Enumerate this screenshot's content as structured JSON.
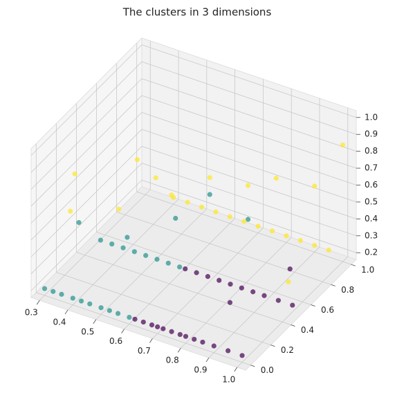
{
  "chart_data": {
    "type": "scatter3d",
    "title": "The clusters in 3 dimensions",
    "xlim": [
      0.27,
      1.03
    ],
    "ylim": [
      -0.05,
      1.05
    ],
    "zlim": [
      0.16,
      1.04
    ],
    "xticks": [
      0.3,
      0.4,
      0.5,
      0.6,
      0.7,
      0.8,
      0.9,
      {
        "value": 1,
        "label": "1.0"
      }
    ],
    "yticks": [
      {
        "value": 0,
        "label": "0.0"
      },
      0.2,
      0.4,
      0.6,
      0.8,
      {
        "value": 1,
        "label": "1.0"
      }
    ],
    "zticks": [
      0.2,
      0.3,
      0.4,
      0.5,
      0.6,
      0.7,
      0.8,
      0.9,
      {
        "value": 1,
        "label": "1.0"
      }
    ],
    "grid": true,
    "alpha": 0.7,
    "series": [
      {
        "color": "#440154",
        "x": [
          0.62,
          0.65,
          0.68,
          0.7,
          0.72,
          0.75,
          0.78,
          0.8,
          0.83,
          0.86,
          0.9,
          0.95,
          1.0,
          0.62,
          0.66,
          0.7,
          0.74,
          0.78,
          0.82,
          0.86,
          0.9,
          0.95,
          1.0,
          0.85,
          0.92
        ],
        "y": [
          0,
          0,
          0,
          0,
          0,
          0,
          0,
          0,
          0,
          0,
          0,
          0,
          0,
          0.5,
          0.5,
          0.5,
          0.5,
          0.5,
          0.5,
          0.5,
          0.5,
          0.5,
          0.5,
          0.3,
          0.7
        ],
        "z": [
          0.2,
          0.2,
          0.2,
          0.2,
          0.2,
          0.2,
          0.2,
          0.2,
          0.2,
          0.2,
          0.2,
          0.2,
          0.2,
          0.2,
          0.2,
          0.2,
          0.2,
          0.2,
          0.2,
          0.2,
          0.2,
          0.2,
          0.2,
          0.25,
          0.25
        ]
      },
      {
        "color": "#21918c",
        "x": [
          0.3,
          0.33,
          0.36,
          0.4,
          0.43,
          0.46,
          0.5,
          0.53,
          0.56,
          0.6,
          0.32,
          0.36,
          0.4,
          0.44,
          0.48,
          0.52,
          0.56,
          0.6,
          0.35,
          0.45,
          0.55,
          0.6,
          0.7
        ],
        "y": [
          0,
          0,
          0,
          0,
          0,
          0,
          0,
          0,
          0,
          0,
          0.5,
          0.5,
          0.5,
          0.5,
          0.5,
          0.5,
          0.5,
          0.5,
          0.2,
          0.4,
          0.6,
          0.8,
          0.9
        ],
        "z": [
          0.2,
          0.2,
          0.2,
          0.2,
          0.2,
          0.2,
          0.2,
          0.2,
          0.2,
          0.2,
          0.2,
          0.2,
          0.2,
          0.2,
          0.2,
          0.2,
          0.2,
          0.2,
          0.5,
          0.35,
          0.4,
          0.45,
          0.3
        ]
      },
      {
        "color": "#fde725",
        "x": [
          0.4,
          0.45,
          0.5,
          0.55,
          0.6,
          0.65,
          0.7,
          0.75,
          0.8,
          0.85,
          0.9,
          0.95,
          0.3,
          0.32,
          0.42,
          0.45,
          0.48,
          0.5,
          0.6,
          0.7,
          0.8,
          0.9,
          1.0,
          0.95
        ],
        "y": [
          1,
          1,
          1,
          1,
          1,
          1,
          1,
          1,
          1,
          1,
          1,
          1,
          0.3,
          0.2,
          0.4,
          0.5,
          0.6,
          0.7,
          0.8,
          0.9,
          0.9,
          1.0,
          1.0,
          0.6
        ],
        "z": [
          0.2,
          0.2,
          0.2,
          0.2,
          0.2,
          0.2,
          0.2,
          0.2,
          0.2,
          0.2,
          0.2,
          0.2,
          0.7,
          0.55,
          0.5,
          0.75,
          0.6,
          0.45,
          0.55,
          0.5,
          0.6,
          0.55,
          0.85,
          0.25
        ]
      }
    ]
  }
}
